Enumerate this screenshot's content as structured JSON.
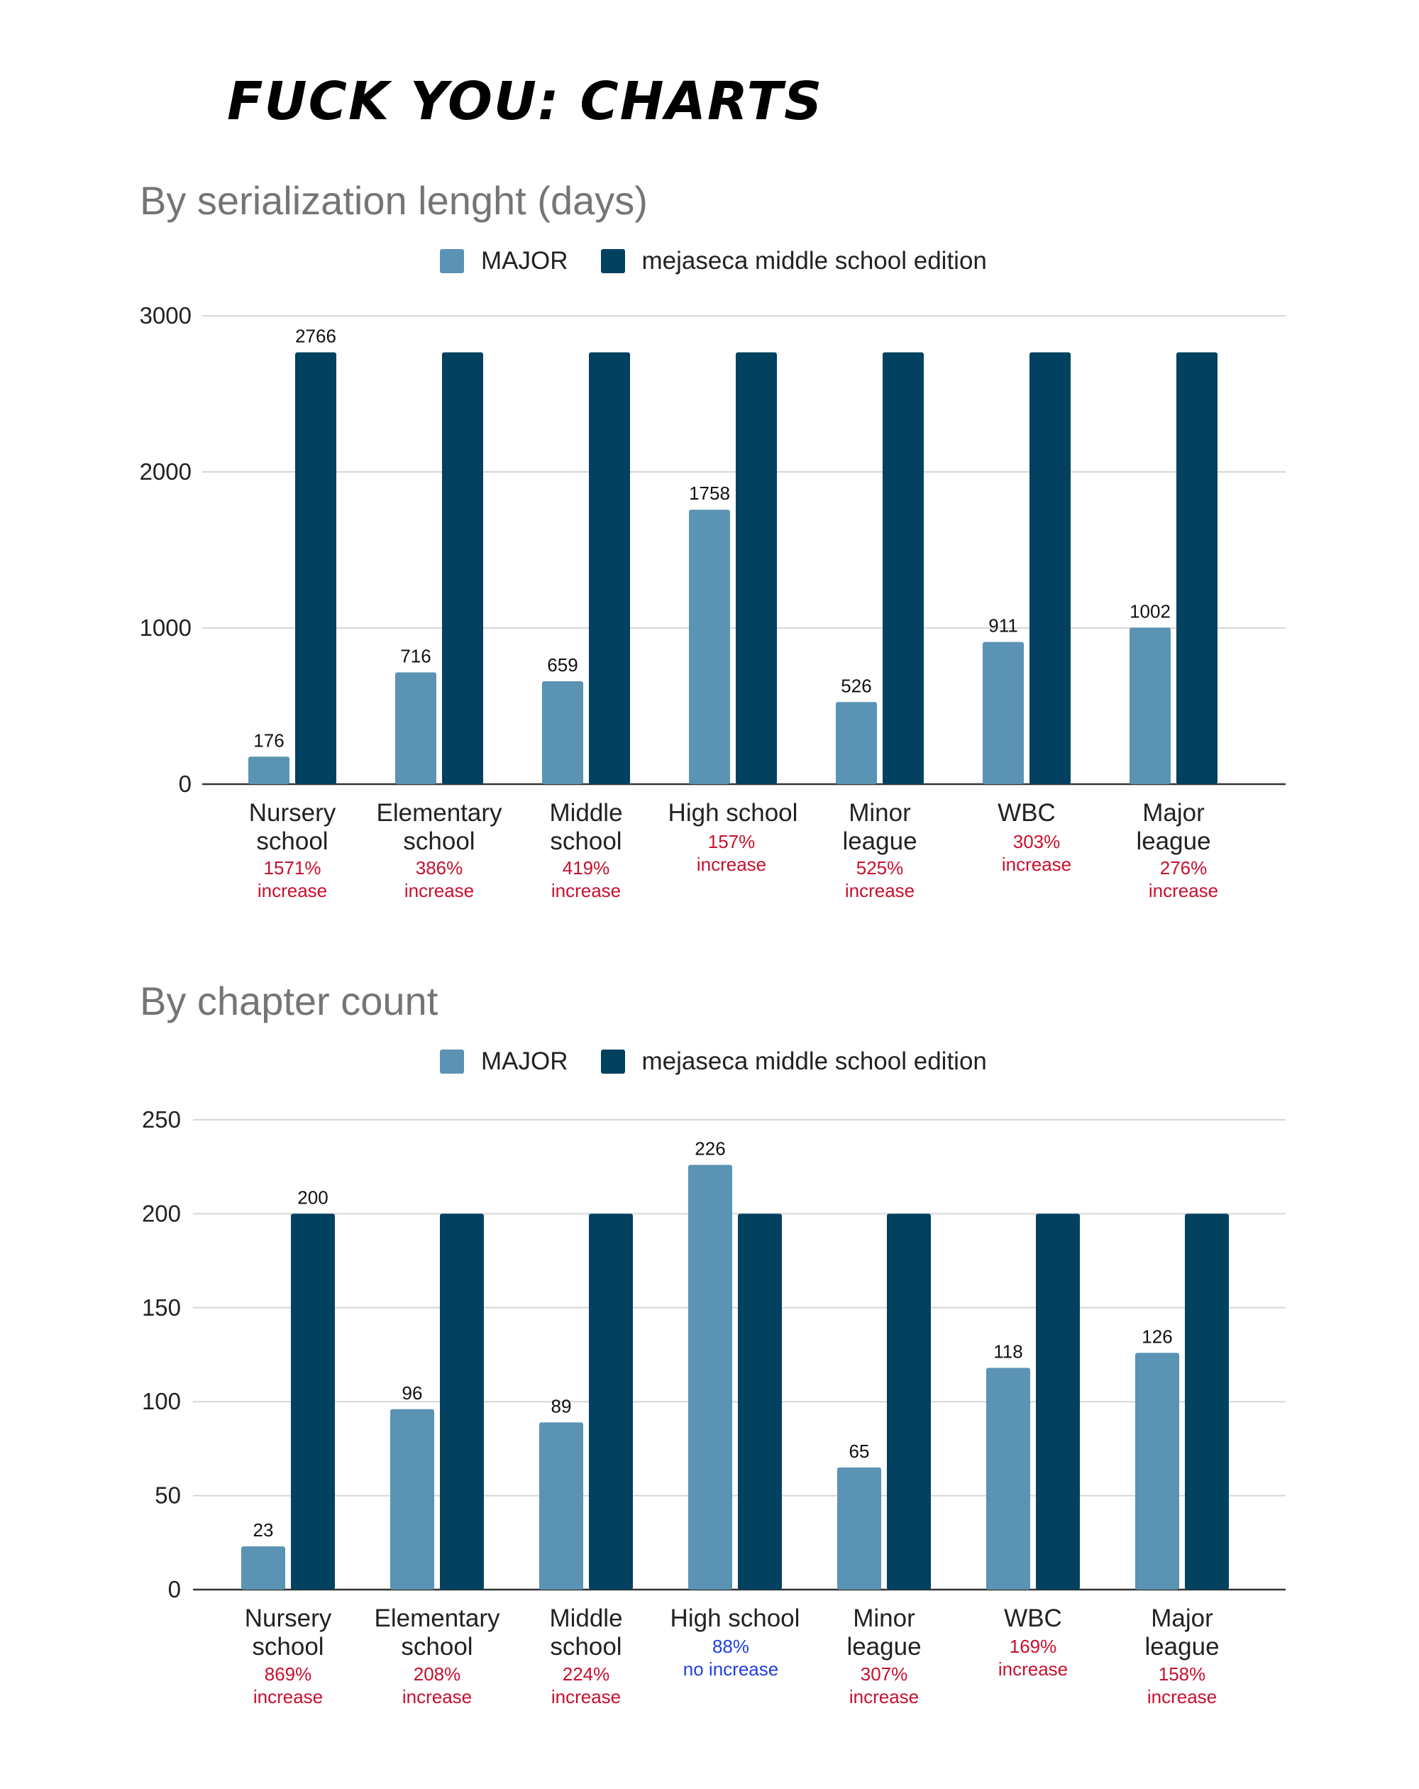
{
  "page_title": "FUCK YOU: CHARTS",
  "colors": {
    "major": "#5a93b3",
    "mejaseca": "#02415f",
    "note_increase": "#c8102e",
    "note_no_increase": "#1f3fe0",
    "grid": "#d6d6d6",
    "axis": "#333333"
  },
  "chart_data": [
    {
      "type": "bar",
      "title": "By serialization lenght (days)",
      "xlabel": "",
      "ylabel": "",
      "ylim": [
        0,
        3000
      ],
      "yticks": [
        0,
        1000,
        2000,
        3000
      ],
      "categories": [
        [
          "Nursery",
          "school"
        ],
        [
          "Elementary",
          "school"
        ],
        [
          "Middle",
          "school"
        ],
        [
          "High school"
        ],
        [
          "Minor",
          "league"
        ],
        [
          "WBC"
        ],
        [
          "Major",
          "league"
        ]
      ],
      "series": [
        {
          "name": "MAJOR",
          "values": [
            176,
            716,
            659,
            1758,
            526,
            911,
            1002
          ],
          "labels": [
            "176",
            "716",
            "659",
            "1758",
            "526",
            "911",
            "1002"
          ]
        },
        {
          "name": "mejaseca middle school edition",
          "values": [
            2766,
            2766,
            2766,
            2766,
            2766,
            2766,
            2766
          ],
          "labels": [
            "2766",
            "",
            "",
            "",
            "",
            "",
            ""
          ]
        }
      ],
      "notes": [
        {
          "lines": [
            "1571%",
            "increase"
          ],
          "kind": "increase"
        },
        {
          "lines": [
            "386%",
            "increase"
          ],
          "kind": "increase"
        },
        {
          "lines": [
            "419%",
            "increase"
          ],
          "kind": "increase"
        },
        {
          "lines": [
            "157%",
            "increase"
          ],
          "kind": "increase"
        },
        {
          "lines": [
            "525%",
            "increase"
          ],
          "kind": "increase"
        },
        {
          "lines": [
            "303%",
            "increase"
          ],
          "kind": "increase"
        },
        {
          "lines": [
            "276%",
            "increase"
          ],
          "kind": "increase"
        }
      ]
    },
    {
      "type": "bar",
      "title": "By chapter count",
      "xlabel": "",
      "ylabel": "",
      "ylim": [
        0,
        250
      ],
      "yticks": [
        0,
        50,
        100,
        150,
        200,
        250
      ],
      "categories": [
        [
          "Nursery",
          "school"
        ],
        [
          "Elementary",
          "school"
        ],
        [
          "Middle",
          "school"
        ],
        [
          "High school"
        ],
        [
          "Minor",
          "league"
        ],
        [
          "WBC"
        ],
        [
          "Major",
          "league"
        ]
      ],
      "series": [
        {
          "name": "MAJOR",
          "values": [
            23,
            96,
            89,
            226,
            65,
            118,
            126
          ],
          "labels": [
            "23",
            "96",
            "89",
            "226",
            "65",
            "118",
            "126"
          ]
        },
        {
          "name": "mejaseca middle school edition",
          "values": [
            200,
            200,
            200,
            200,
            200,
            200,
            200
          ],
          "labels": [
            "200",
            "",
            "",
            "",
            "",
            "",
            ""
          ]
        }
      ],
      "notes": [
        {
          "lines": [
            "869%",
            "increase"
          ],
          "kind": "increase"
        },
        {
          "lines": [
            "208%",
            "increase"
          ],
          "kind": "increase"
        },
        {
          "lines": [
            "224%",
            "increase"
          ],
          "kind": "increase"
        },
        {
          "lines": [
            "88%",
            "no increase"
          ],
          "kind": "no_increase"
        },
        {
          "lines": [
            "307%",
            "increase"
          ],
          "kind": "increase"
        },
        {
          "lines": [
            "169%",
            "increase"
          ],
          "kind": "increase"
        },
        {
          "lines": [
            "158%",
            "increase"
          ],
          "kind": "increase"
        }
      ]
    }
  ]
}
